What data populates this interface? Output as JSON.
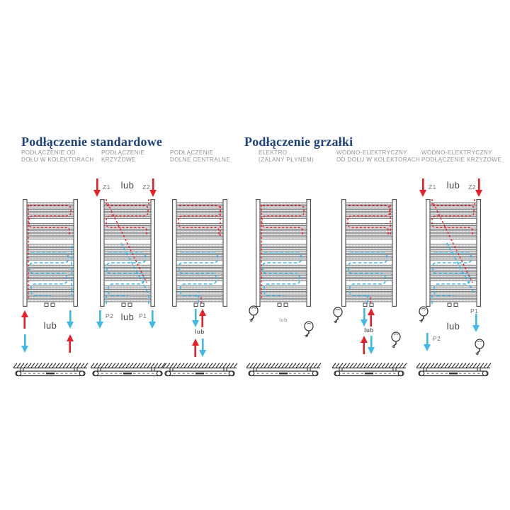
{
  "page": {
    "background": "#ffffff"
  },
  "colors": {
    "title": "#1e4380",
    "label_gray": "#8f9296",
    "flow_red": "#e62129",
    "flow_blue": "#3fb9e8",
    "line_dark": "#46484a",
    "rung_fill": "#d4d5d6"
  },
  "sections": [
    {
      "title": "Podłączenie standardowe"
    },
    {
      "title": "Podłączenie grzałki"
    }
  ],
  "or_word": "lub",
  "diagrams": [
    {
      "type": "bottom-collectors",
      "section": 0,
      "label_lines": [
        "PODŁĄCZENIE OD",
        "DOŁU W KOLEKTORACH"
      ],
      "top": null,
      "bottom": {
        "style": "dual-swap",
        "or": "lub"
      }
    },
    {
      "type": "cross",
      "section": 0,
      "label_lines": [
        "PODŁĄCZENIE",
        "KRZYŻOWE"
      ],
      "top": {
        "style": "supply-pair",
        "left_label": "Z1",
        "right_label": "Z2",
        "or": "lub"
      },
      "bottom": {
        "style": "return-pair",
        "left_label": "P2",
        "right_label": "P1",
        "or": "lub"
      }
    },
    {
      "type": "bottom-central",
      "section": 0,
      "label_lines": [
        "PODŁĄCZENIE",
        "DOLNE CENTRALNE"
      ],
      "top": null,
      "bottom": {
        "style": "central-swap",
        "or": "lub"
      }
    },
    {
      "type": "electric",
      "section": 1,
      "label_lines": [
        "ELEKTRO",
        "(ZALANY PŁYNEM)"
      ],
      "top": null,
      "bottom": {
        "style": "heaters-only",
        "or": "lub"
      }
    },
    {
      "type": "water-electric-collectors",
      "section": 1,
      "label_lines": [
        "WODNO-ELEKTRYCZNY",
        "OD DOŁU W KOLEKTORACH"
      ],
      "top": null,
      "bottom": {
        "style": "central-swap-heaters",
        "or": "lub"
      }
    },
    {
      "type": "water-electric-cross",
      "section": 1,
      "label_lines": [
        "WODNO-ELEKTRYCZNY",
        "PODŁĄCZENIE KRZYŻOWE"
      ],
      "top": {
        "style": "supply-pair",
        "left_label": "Z1",
        "right_label": "Z2",
        "or": "lub"
      },
      "bottom": {
        "style": "heater-returns",
        "left_label": "P2",
        "right_label": "P1",
        "or": "lub"
      }
    }
  ]
}
